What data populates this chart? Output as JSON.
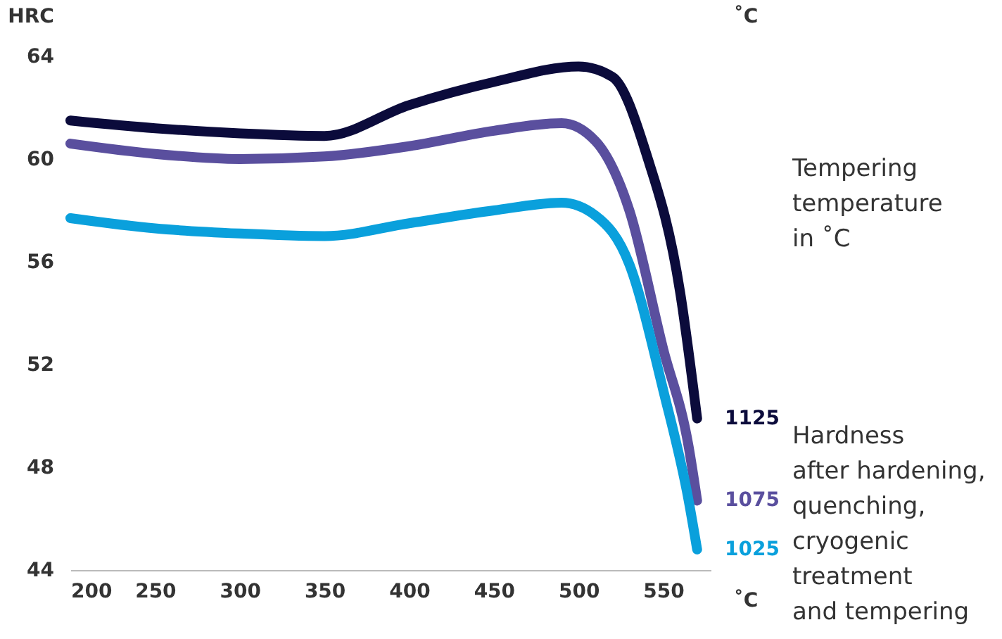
{
  "chart_data": {
    "type": "line",
    "x": [
      200,
      250,
      300,
      350,
      400,
      450,
      490,
      510,
      530,
      550,
      565,
      570
    ],
    "series": [
      {
        "name": "1125",
        "color": "#0b0b3b",
        "x": [
          200,
          250,
          300,
          350,
          400,
          450,
          500,
          520,
          540,
          560,
          570
        ],
        "values": [
          61.5,
          61.2,
          61.0,
          60.9,
          62.1,
          63.0,
          63.6,
          63.2,
          60.2,
          54.8,
          49.9
        ]
      },
      {
        "name": "1075",
        "color": "#5a4f9e",
        "values": [
          60.6,
          60.2,
          60.0,
          60.1,
          60.5,
          61.1,
          61.4,
          60.7,
          58.0,
          52.6,
          48.8,
          46.7
        ]
      },
      {
        "name": "1025",
        "color": "#0aa0dc",
        "values": [
          57.7,
          57.3,
          57.1,
          57.0,
          57.5,
          58.0,
          58.3,
          57.8,
          55.9,
          51.0,
          46.7,
          44.8
        ]
      }
    ],
    "xlim": [
      200,
      578
    ],
    "xticks": [
      200,
      250,
      300,
      350,
      400,
      450,
      500,
      550
    ],
    "ylim": [
      44,
      64
    ],
    "yticks": [
      44,
      48,
      52,
      56,
      60,
      64
    ],
    "xlabel": "˚C",
    "ylabel": "HRC",
    "legend_title": "˚C",
    "legend": "right",
    "grid": false,
    "annotations": [
      "Tempering\ntemperature\nin ˚C",
      "Hardness\nafter hardening,\nquenching,\ncryogenic\ntreatment\nand tempering"
    ]
  }
}
